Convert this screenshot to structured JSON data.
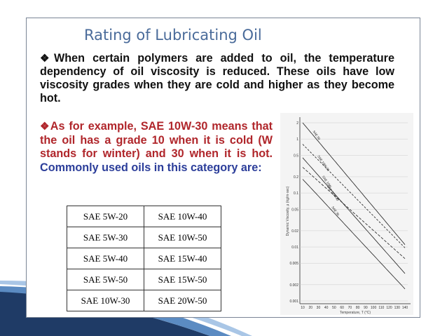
{
  "slide": {
    "title": "Rating of Lubricating Oil",
    "para1_bullet": "❖",
    "para1": "When certain polymers are added to oil, the temperature dependency of oil viscosity is reduced. These oils have low viscosity grades when they are cold and higher as they become hot.",
    "para2_bullet": "❖",
    "para2_red": "As for example, SAE 10W-30 means that the oil has a grade 10 when it is cold (W stands for winter) and 30 when it is hot.",
    "para2_blue": "Commonly used oils in this category are:"
  },
  "table": {
    "rows": [
      [
        "SAE 5W-20",
        "SAE 10W-40"
      ],
      [
        "SAE 5W-30",
        "SAE 10W-50"
      ],
      [
        "SAE 5W-40",
        "SAE 15W-40"
      ],
      [
        "SAE 5W-50",
        "SAE 15W-50"
      ],
      [
        "SAE 10W-30",
        "SAE 20W-50"
      ]
    ]
  },
  "chart_data": {
    "type": "line",
    "xlabel": "Temperature, T (°C)",
    "ylabel": "Dynamic Viscosity, μ (kg/m·sec)",
    "x_ticks": [
      "10",
      "20",
      "30",
      "40",
      "50",
      "60",
      "70",
      "80",
      "90",
      "100",
      "110",
      "120",
      "130",
      "140"
    ],
    "y_ticks": [
      "0.001",
      "0.002",
      "0.005",
      "0.01",
      "0.02",
      "0.05",
      "0.1",
      "0.2",
      "0.5",
      "1",
      "2"
    ],
    "curve_labels": [
      "SAE 50",
      "SAE 10W-30",
      "SAE 10W",
      "SAE 20W-40",
      "SAE 30"
    ]
  },
  "colors": {
    "title": "#4a6b9a",
    "red_text": "#b0262b",
    "blue_text": "#2c3e9a",
    "deco_dark": "#1f3b66",
    "deco_light": "#5b8bc2"
  }
}
